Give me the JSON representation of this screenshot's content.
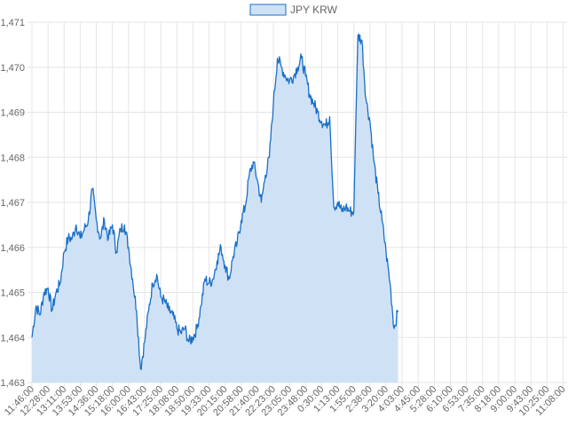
{
  "chart_data": {
    "type": "area",
    "title": "",
    "xlabel": "",
    "ylabel": "",
    "legend_position": "top-center",
    "grid": true,
    "colors": {
      "line": "#1a6fc9",
      "fill": "#cfe2f5",
      "legend_fill": "#cfe2f5",
      "grid": "#e6e6e6",
      "text": "#666666"
    },
    "ylim": [
      1463,
      1471
    ],
    "y_ticks": [
      "1,463",
      "1,464",
      "1,465",
      "1,466",
      "1,467",
      "1,468",
      "1,469",
      "1,470",
      "1,471"
    ],
    "x_ticks": [
      "11:46:00",
      "12:28:00",
      "13:11:00",
      "13:53:00",
      "14:36:00",
      "15:18:00",
      "16:00:00",
      "16:43:00",
      "17:25:00",
      "18:08:00",
      "18:50:00",
      "19:33:00",
      "20:15:00",
      "20:58:00",
      "21:40:00",
      "22:23:00",
      "23:05:00",
      "23:48:00",
      "0:30:00",
      "1:13:00",
      "1:55:00",
      "2:38:00",
      "3:20:00",
      "4:03:00",
      "4:45:00",
      "5:28:00",
      "6:10:00",
      "6:53:00",
      "7:35:00",
      "8:18:00",
      "9:00:00",
      "9:43:00",
      "10:25:00",
      "11:08:00"
    ],
    "series": [
      {
        "name": "JPY KRW",
        "points": [
          [
            0.0,
            1464.0
          ],
          [
            0.25,
            1464.7
          ],
          [
            0.5,
            1464.5
          ],
          [
            0.75,
            1465.0
          ],
          [
            1.0,
            1465.1
          ],
          [
            1.25,
            1464.6
          ],
          [
            1.5,
            1465.0
          ],
          [
            1.75,
            1465.2
          ],
          [
            2.0,
            1465.9
          ],
          [
            2.25,
            1466.2
          ],
          [
            2.5,
            1466.2
          ],
          [
            2.75,
            1466.5
          ],
          [
            3.0,
            1466.2
          ],
          [
            3.25,
            1466.4
          ],
          [
            3.5,
            1466.6
          ],
          [
            3.75,
            1467.3
          ],
          [
            4.0,
            1466.6
          ],
          [
            4.25,
            1466.2
          ],
          [
            4.5,
            1466.6
          ],
          [
            4.75,
            1466.2
          ],
          [
            5.0,
            1466.5
          ],
          [
            5.25,
            1465.9
          ],
          [
            5.5,
            1466.4
          ],
          [
            5.75,
            1466.5
          ],
          [
            6.0,
            1466.0
          ],
          [
            6.25,
            1465.3
          ],
          [
            6.5,
            1464.6
          ],
          [
            6.75,
            1463.3
          ],
          [
            7.0,
            1463.9
          ],
          [
            7.25,
            1464.6
          ],
          [
            7.5,
            1465.2
          ],
          [
            7.75,
            1465.4
          ],
          [
            8.0,
            1464.9
          ],
          [
            8.25,
            1464.8
          ],
          [
            8.5,
            1464.6
          ],
          [
            8.75,
            1464.5
          ],
          [
            9.0,
            1464.2
          ],
          [
            9.25,
            1464.1
          ],
          [
            9.5,
            1464.2
          ],
          [
            9.75,
            1463.9
          ],
          [
            10.0,
            1464.0
          ],
          [
            10.25,
            1464.2
          ],
          [
            10.5,
            1464.7
          ],
          [
            10.75,
            1465.3
          ],
          [
            11.0,
            1465.2
          ],
          [
            11.25,
            1465.3
          ],
          [
            11.5,
            1465.7
          ],
          [
            11.75,
            1466.0
          ],
          [
            12.0,
            1465.6
          ],
          [
            12.25,
            1465.3
          ],
          [
            12.5,
            1465.8
          ],
          [
            12.75,
            1466.1
          ],
          [
            13.0,
            1466.6
          ],
          [
            13.25,
            1466.9
          ],
          [
            13.5,
            1467.6
          ],
          [
            13.75,
            1467.9
          ],
          [
            14.0,
            1467.5
          ],
          [
            14.25,
            1467.0
          ],
          [
            14.5,
            1467.6
          ],
          [
            14.75,
            1468.0
          ],
          [
            15.0,
            1469.2
          ],
          [
            15.25,
            1470.2
          ],
          [
            15.5,
            1470.0
          ],
          [
            15.75,
            1469.8
          ],
          [
            16.0,
            1469.7
          ],
          [
            16.25,
            1469.8
          ],
          [
            16.5,
            1470.0
          ],
          [
            16.75,
            1470.2
          ],
          [
            17.0,
            1469.8
          ],
          [
            17.25,
            1469.4
          ],
          [
            17.5,
            1469.2
          ],
          [
            17.75,
            1469.0
          ],
          [
            18.0,
            1468.8
          ],
          [
            18.25,
            1468.7
          ],
          [
            18.5,
            1468.9
          ],
          [
            18.75,
            1466.9
          ],
          [
            19.0,
            1467.0
          ],
          [
            19.25,
            1466.8
          ],
          [
            19.5,
            1466.9
          ],
          [
            19.75,
            1466.8
          ],
          [
            20.0,
            1466.8
          ],
          [
            20.25,
            1470.7
          ],
          [
            20.5,
            1470.6
          ],
          [
            20.75,
            1469.3
          ],
          [
            21.0,
            1468.8
          ],
          [
            21.25,
            1467.9
          ],
          [
            21.5,
            1467.2
          ],
          [
            21.75,
            1466.6
          ],
          [
            22.0,
            1465.9
          ],
          [
            22.25,
            1465.2
          ],
          [
            22.5,
            1464.2
          ],
          [
            22.75,
            1464.6
          ]
        ]
      }
    ]
  }
}
